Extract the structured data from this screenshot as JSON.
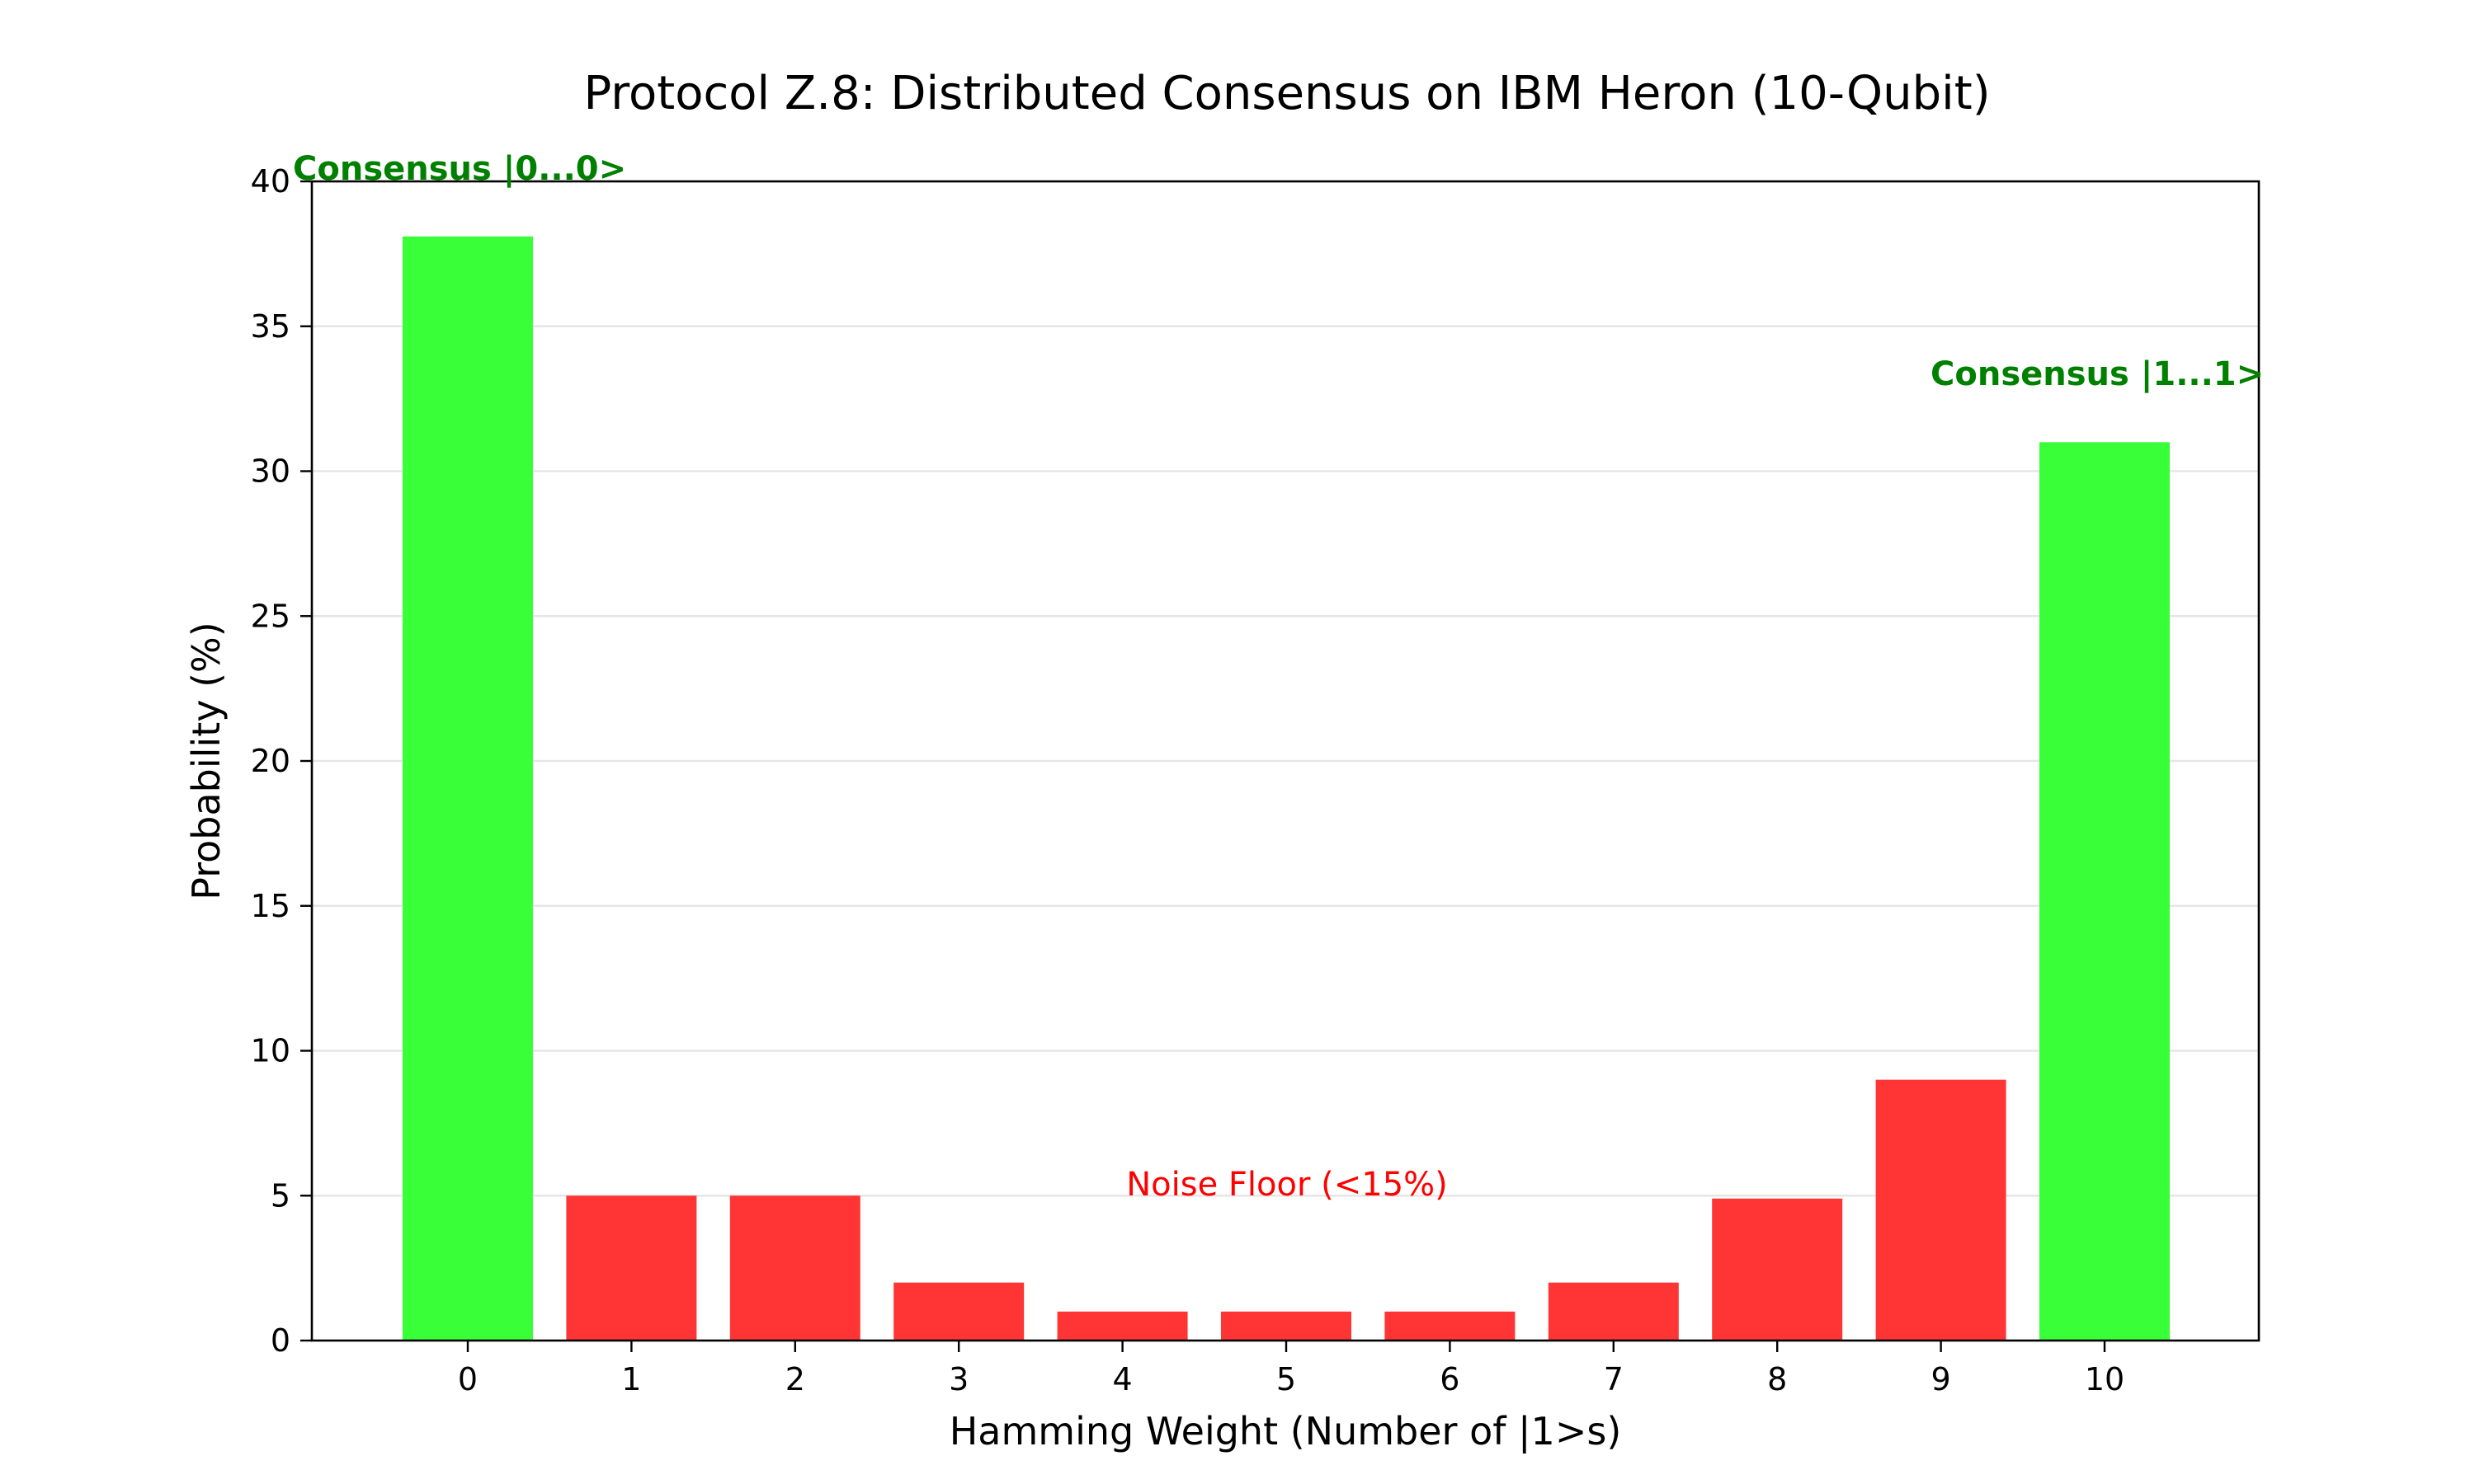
{
  "chart_data": {
    "type": "bar",
    "title": "Protocol Z.8: Distributed Consensus on IBM Heron (10-Qubit)",
    "xlabel": "Hamming Weight (Number of |1>s)",
    "ylabel": "Probability (%)",
    "categories": [
      "0",
      "1",
      "2",
      "3",
      "4",
      "5",
      "6",
      "7",
      "8",
      "9",
      "10"
    ],
    "values": [
      38.1,
      5.0,
      5.0,
      2.0,
      1.0,
      1.0,
      1.0,
      2.0,
      4.9,
      9.0,
      31.0
    ],
    "ylim": [
      0,
      40
    ],
    "yticks": [
      "0",
      "5",
      "10",
      "15",
      "20",
      "25",
      "30",
      "35",
      "40"
    ],
    "grid": "horizontal",
    "colors": {
      "consensus": "#39ff39",
      "noise": "#ff3535",
      "consensus_text": "#008000",
      "noise_text": "#ff0000",
      "grid": "#e6e6e6"
    },
    "annotations": [
      {
        "text": "Consensus |0...0>",
        "style": "consensus"
      },
      {
        "text": "Consensus |1...1>",
        "style": "consensus"
      },
      {
        "text": "Noise Floor (<15%)",
        "style": "noise"
      }
    ]
  }
}
